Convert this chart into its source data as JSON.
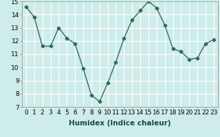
{
  "x": [
    0,
    1,
    2,
    3,
    4,
    5,
    6,
    7,
    8,
    9,
    10,
    11,
    12,
    13,
    14,
    15,
    16,
    17,
    18,
    19,
    20,
    21,
    22,
    23
  ],
  "y": [
    14.6,
    13.8,
    11.6,
    11.6,
    13.0,
    12.2,
    11.8,
    9.9,
    7.9,
    7.4,
    8.8,
    10.4,
    12.2,
    13.6,
    14.3,
    15.0,
    14.5,
    13.2,
    11.4,
    11.2,
    10.6,
    10.7,
    11.8,
    12.1
  ],
  "xlabel": "Humidex (Indice chaleur)",
  "ylabel": "",
  "xlim": [
    -0.5,
    23.5
  ],
  "ylim": [
    7,
    15
  ],
  "yticks": [
    7,
    8,
    9,
    10,
    11,
    12,
    13,
    14,
    15
  ],
  "xticks": [
    0,
    1,
    2,
    3,
    4,
    5,
    6,
    7,
    8,
    9,
    10,
    11,
    12,
    13,
    14,
    15,
    16,
    17,
    18,
    19,
    20,
    21,
    22,
    23
  ],
  "line_color": "#2d6b5e",
  "marker": "D",
  "marker_size": 2.5,
  "bg_color": "#ceecea",
  "grid_color": "#ffffff",
  "label_fontsize": 7.5,
  "tick_fontsize": 6.5
}
